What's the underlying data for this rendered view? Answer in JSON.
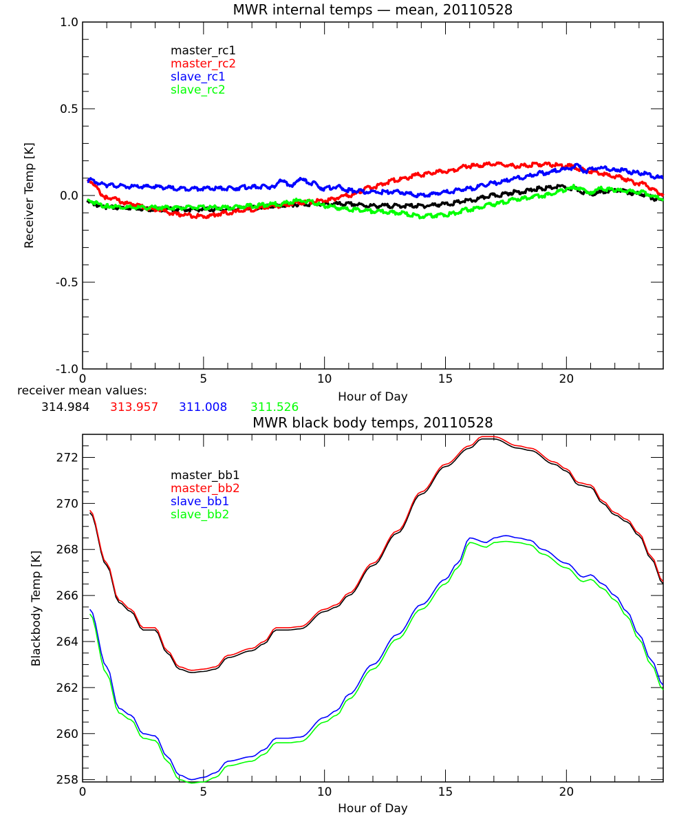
{
  "chart_data": [
    {
      "type": "line",
      "title": "MWR internal temps — mean, 20110528",
      "xlabel": "Hour of Day",
      "ylabel": "Receiver Temp [K]",
      "xlim": [
        0,
        24
      ],
      "ylim": [
        -1.0,
        1.0
      ],
      "xticks": [
        "0",
        "5",
        "10",
        "15",
        "20"
      ],
      "xtick_values": [
        0,
        5,
        10,
        15,
        20
      ],
      "yticks": [
        "1.0",
        "0.5",
        "0.0",
        "-0.5",
        "-1.0"
      ],
      "ytick_values": [
        1.0,
        0.5,
        0.0,
        -0.5,
        -1.0
      ],
      "grid": false,
      "legend_position": "top-left",
      "annotation": {
        "label": "receiver mean values:",
        "values": [
          {
            "text": "314.984",
            "color": "#000000"
          },
          {
            "text": "313.957",
            "color": "#ff0000"
          },
          {
            "text": "311.008",
            "color": "#0000ff"
          },
          {
            "text": "311.526",
            "color": "#00ff00"
          }
        ]
      },
      "series": [
        {
          "name": "master_rc1",
          "color": "#000000",
          "x": [
            0.2,
            1,
            2,
            3,
            4,
            5,
            6,
            7,
            8,
            9,
            10,
            11,
            12,
            13,
            14,
            15,
            16,
            17,
            18,
            19,
            19.8,
            20.2,
            21,
            22,
            23,
            24
          ],
          "y": [
            -0.04,
            -0.07,
            -0.07,
            -0.08,
            -0.08,
            -0.08,
            -0.08,
            -0.07,
            -0.06,
            -0.05,
            -0.05,
            -0.05,
            -0.06,
            -0.06,
            -0.06,
            -0.05,
            -0.03,
            0.0,
            0.02,
            0.04,
            0.05,
            0.04,
            0.01,
            0.03,
            0.01,
            -0.03
          ]
        },
        {
          "name": "master_rc2",
          "color": "#ff0000",
          "x": [
            0.2,
            1,
            2,
            3,
            4,
            5,
            6,
            7,
            8,
            9,
            10,
            11,
            12,
            13,
            14,
            15,
            16,
            17,
            18,
            19,
            20,
            21,
            22,
            23,
            24
          ],
          "y": [
            0.09,
            -0.01,
            -0.05,
            -0.08,
            -0.11,
            -0.12,
            -0.1,
            -0.08,
            -0.06,
            -0.04,
            -0.03,
            0.0,
            0.05,
            0.09,
            0.12,
            0.14,
            0.17,
            0.18,
            0.17,
            0.18,
            0.17,
            0.14,
            0.11,
            0.07,
            0.01
          ]
        },
        {
          "name": "slave_rc1",
          "color": "#0000ff",
          "x": [
            0.2,
            1,
            2,
            3,
            4,
            5,
            6,
            7,
            7.8,
            8.2,
            8.7,
            9.0,
            9.5,
            10,
            10.5,
            11,
            12,
            13,
            14,
            15,
            16,
            17,
            18,
            19,
            20,
            20.4,
            20.8,
            21.2,
            22,
            23,
            24
          ],
          "y": [
            0.09,
            0.06,
            0.05,
            0.05,
            0.04,
            0.04,
            0.04,
            0.05,
            0.05,
            0.08,
            0.06,
            0.09,
            0.07,
            0.04,
            0.05,
            0.03,
            0.02,
            0.02,
            0.0,
            0.02,
            0.04,
            0.07,
            0.1,
            0.13,
            0.15,
            0.17,
            0.14,
            0.16,
            0.15,
            0.13,
            0.1
          ]
        },
        {
          "name": "slave_rc2",
          "color": "#00ff00",
          "x": [
            0.2,
            1,
            2,
            3,
            4,
            5,
            6,
            7,
            8,
            9,
            9.5,
            10,
            11,
            12,
            13,
            14,
            15,
            16,
            17,
            18,
            19,
            20,
            20.3,
            21,
            21.5,
            22,
            23,
            24
          ],
          "y": [
            -0.03,
            -0.06,
            -0.07,
            -0.07,
            -0.07,
            -0.07,
            -0.07,
            -0.06,
            -0.05,
            -0.03,
            -0.04,
            -0.06,
            -0.08,
            -0.09,
            -0.1,
            -0.12,
            -0.11,
            -0.08,
            -0.05,
            -0.02,
            0.0,
            0.03,
            0.05,
            0.02,
            0.04,
            0.03,
            0.02,
            -0.02
          ]
        }
      ]
    },
    {
      "type": "line",
      "title": "MWR black body temps, 20110528",
      "xlabel": "Hour of Day",
      "ylabel": "Blackbody Temp [K]",
      "xlim": [
        0,
        24
      ],
      "ylim": [
        257.9,
        273.0
      ],
      "xticks": [
        "0",
        "5",
        "10",
        "15",
        "20"
      ],
      "xtick_values": [
        0,
        5,
        10,
        15,
        20
      ],
      "yticks": [
        "272",
        "270",
        "268",
        "266",
        "264",
        "262",
        "260",
        "258"
      ],
      "ytick_values": [
        272,
        270,
        268,
        266,
        264,
        262,
        260,
        258
      ],
      "grid": false,
      "legend_position": "top-left",
      "series": [
        {
          "name": "master_bb1",
          "color": "#000000",
          "x": [
            0.3,
            1,
            1.5,
            2,
            2.5,
            3,
            3.5,
            4,
            4.5,
            5,
            5.5,
            6,
            7,
            7.5,
            8,
            8.5,
            9,
            10,
            10.5,
            11,
            12,
            13,
            14,
            15,
            16,
            16.5,
            17,
            18,
            18.5,
            19.5,
            20,
            20.5,
            21,
            21.5,
            22,
            22.5,
            23,
            23.5,
            24
          ],
          "y": [
            269.6,
            267.3,
            265.7,
            265.3,
            264.5,
            264.5,
            263.5,
            262.8,
            262.65,
            262.7,
            262.8,
            263.3,
            263.6,
            263.9,
            264.5,
            264.5,
            264.55,
            265.3,
            265.5,
            266.0,
            267.3,
            268.7,
            270.4,
            271.6,
            272.4,
            272.8,
            272.8,
            272.4,
            272.3,
            271.7,
            271.4,
            270.8,
            270.7,
            270.0,
            269.5,
            269.2,
            268.6,
            267.6,
            266.5
          ]
        },
        {
          "name": "master_bb2",
          "color": "#ff0000",
          "x": [
            0.3,
            1,
            1.5,
            2,
            2.5,
            3,
            3.5,
            4,
            4.5,
            5,
            5.5,
            6,
            7,
            7.5,
            8,
            8.5,
            9,
            10,
            10.5,
            11,
            12,
            13,
            14,
            15,
            16,
            16.5,
            17,
            18,
            18.5,
            19.5,
            20,
            20.5,
            21,
            21.5,
            22,
            22.5,
            23,
            23.5,
            24
          ],
          "y": [
            269.7,
            267.4,
            265.8,
            265.4,
            264.6,
            264.6,
            263.6,
            262.9,
            262.75,
            262.8,
            262.9,
            263.4,
            263.7,
            264.0,
            264.6,
            264.6,
            264.65,
            265.4,
            265.6,
            266.1,
            267.4,
            268.8,
            270.5,
            271.7,
            272.5,
            272.9,
            272.9,
            272.5,
            272.4,
            271.8,
            271.5,
            270.9,
            270.8,
            270.1,
            269.6,
            269.3,
            268.7,
            267.7,
            266.6
          ]
        },
        {
          "name": "slave_bb1",
          "color": "#0000ff",
          "x": [
            0.3,
            1,
            1.5,
            2,
            2.5,
            3,
            3.5,
            4,
            4.5,
            5,
            5.5,
            6,
            7,
            7.5,
            8,
            8.5,
            9,
            10,
            10.5,
            11,
            12,
            13,
            14,
            15,
            15.5,
            16,
            16.7,
            17,
            17.5,
            18,
            18.5,
            19,
            20,
            20.7,
            21,
            21.5,
            22,
            22.5,
            23,
            23.5,
            24
          ],
          "y": [
            265.4,
            262.9,
            261.1,
            260.8,
            260.0,
            259.9,
            259.0,
            258.2,
            258.0,
            258.1,
            258.3,
            258.8,
            259.0,
            259.3,
            259.8,
            259.8,
            259.85,
            260.7,
            261.0,
            261.7,
            263.0,
            264.3,
            265.6,
            266.7,
            267.4,
            268.5,
            268.3,
            268.5,
            268.6,
            268.5,
            268.4,
            268.0,
            267.4,
            266.8,
            266.9,
            266.5,
            266.0,
            265.3,
            264.3,
            263.2,
            262.1
          ]
        },
        {
          "name": "slave_bb2",
          "color": "#00ff00",
          "x": [
            0.3,
            1,
            1.5,
            2,
            2.5,
            3,
            3.5,
            4,
            4.5,
            5,
            5.5,
            6,
            7,
            7.5,
            8,
            8.5,
            9,
            10,
            10.5,
            11,
            12,
            13,
            14,
            15,
            15.5,
            16,
            16.7,
            17,
            17.5,
            18,
            18.5,
            19,
            20,
            20.7,
            21,
            21.5,
            22,
            22.5,
            23,
            23.5,
            24
          ],
          "y": [
            265.2,
            262.6,
            260.9,
            260.6,
            259.8,
            259.7,
            258.8,
            258.0,
            257.85,
            257.9,
            258.1,
            258.6,
            258.8,
            259.1,
            259.6,
            259.6,
            259.65,
            260.5,
            260.8,
            261.5,
            262.8,
            264.1,
            265.4,
            266.5,
            267.2,
            268.3,
            268.1,
            268.3,
            268.35,
            268.3,
            268.2,
            267.8,
            267.2,
            266.6,
            266.7,
            266.3,
            265.8,
            265.1,
            264.1,
            263.0,
            261.9
          ]
        }
      ]
    }
  ]
}
